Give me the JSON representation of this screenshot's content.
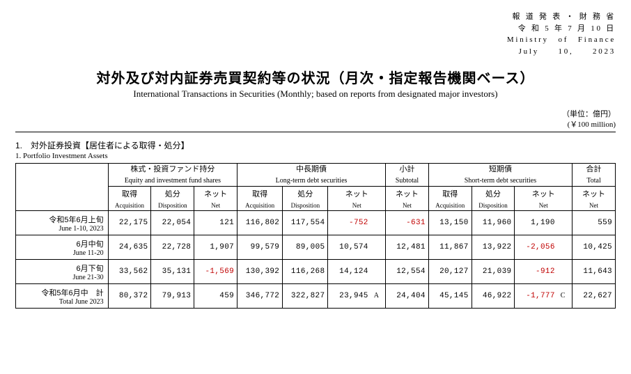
{
  "publisher": {
    "line1": "報 道 発 表 ・ 財 務 省",
    "line2": "令 和 5 年 7 月 10 日",
    "line3": "Ministry　of　Finance",
    "line4": "July　　10,　　2023"
  },
  "title": {
    "ja": "対外及び対内証券売買契約等の状況（月次・指定報告機関ベース）",
    "en": "International Transactions in Securities (Monthly; based on reports from designated major investors)"
  },
  "unit": {
    "ja": "（単位：億円）",
    "en": "(￥100 million)"
  },
  "section1": {
    "heading_ja": "1.　対外証券投資【居住者による取得・処分】",
    "heading_en": "1. Portfolio Investment Assets"
  },
  "groups": {
    "equity": {
      "ja": "株式・投資ファンド持分",
      "en": "Equity and investment fund shares"
    },
    "longterm": {
      "ja": "中長期債",
      "en": "Long-term debt securities"
    },
    "subtotal": {
      "ja": "小計",
      "en": "Subtotal"
    },
    "shortterm": {
      "ja": "短期債",
      "en": "Short-term debt securities"
    },
    "total": {
      "ja": "合計",
      "en": "Total"
    }
  },
  "subcols": {
    "acq": {
      "ja": "取得",
      "en": "Acquisition"
    },
    "dis": {
      "ja": "処分",
      "en": "Disposition"
    },
    "net": {
      "ja": "ネット",
      "en": "Net"
    }
  },
  "rows": [
    {
      "label_ja": "令和5年6月上旬",
      "label_en": "June 1-10, 2023",
      "eq_acq": "22,175",
      "eq_dis": "22,054",
      "eq_net": "121",
      "lt_acq": "116,802",
      "lt_dis": "117,554",
      "lt_net": "-752",
      "sub_net": "-631",
      "st_acq": "13,150",
      "st_dis": "11,960",
      "st_net": "1,190",
      "tot_net": "559"
    },
    {
      "label_ja": "6月中旬",
      "label_en": "June 11-20",
      "eq_acq": "24,635",
      "eq_dis": "22,728",
      "eq_net": "1,907",
      "lt_acq": "99,579",
      "lt_dis": "89,005",
      "lt_net": "10,574",
      "sub_net": "12,481",
      "st_acq": "11,867",
      "st_dis": "13,922",
      "st_net": "-2,056",
      "tot_net": "10,425"
    },
    {
      "label_ja": "6月下旬",
      "label_en": "June 21-30",
      "eq_acq": "33,562",
      "eq_dis": "35,131",
      "eq_net": "-1,569",
      "lt_acq": "130,392",
      "lt_dis": "116,268",
      "lt_net": "14,124",
      "sub_net": "12,554",
      "st_acq": "20,127",
      "st_dis": "21,039",
      "st_net": "-912",
      "tot_net": "11,643"
    },
    {
      "label_ja": "令和5年6月中　計",
      "label_en": "Total June 2023",
      "eq_acq": "80,372",
      "eq_dis": "79,913",
      "eq_net": "459",
      "lt_acq": "346,772",
      "lt_dis": "322,827",
      "lt_net": "23,945",
      "lt_note": "A",
      "sub_net": "24,404",
      "st_acq": "45,145",
      "st_dis": "46,922",
      "st_net": "-1,777",
      "st_note": "C",
      "tot_net": "22,627"
    }
  ],
  "colors": {
    "negative": "#c00000"
  }
}
